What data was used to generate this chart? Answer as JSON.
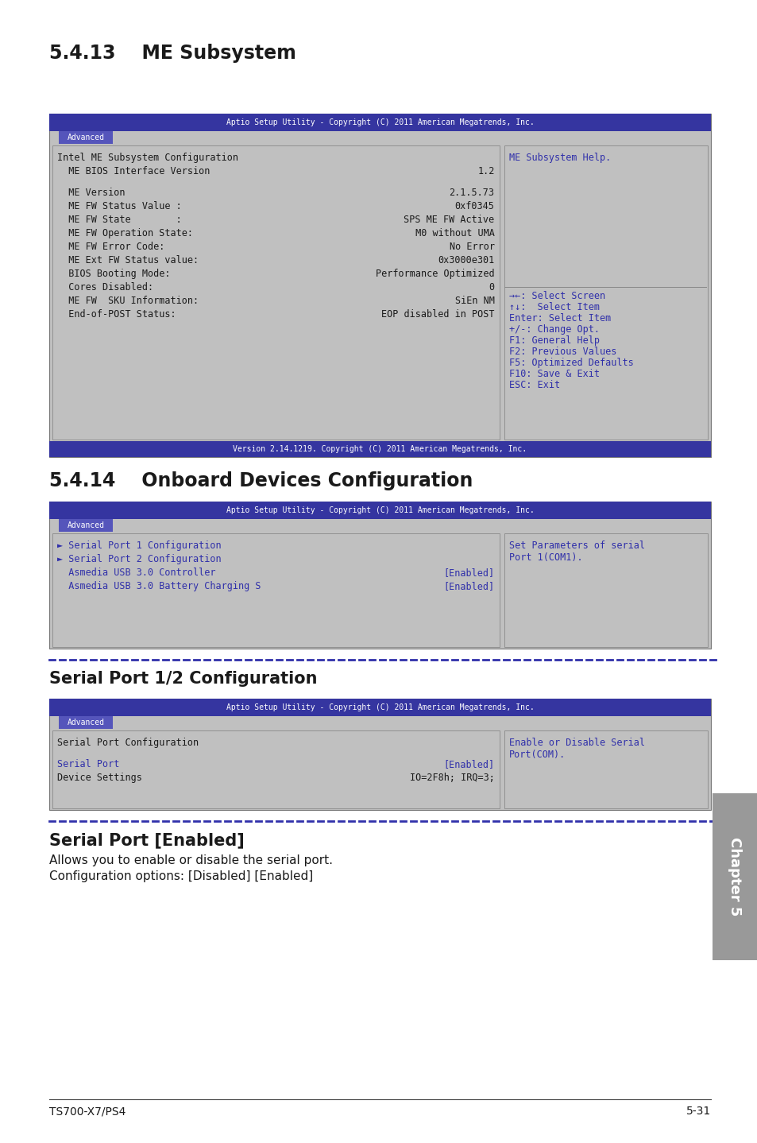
{
  "page_title_1": "5.4.13    ME Subsystem",
  "page_title_2": "5.4.14    Onboard Devices Configuration",
  "page_title_3": "Serial Port 1/2 Configuration",
  "page_title_4": "Serial Port [Enabled]",
  "page_body_4_line1": "Allows you to enable or disable the serial port.",
  "page_body_4_line2": "Configuration options: [Disabled] [Enabled]",
  "header_text": "Aptio Setup Utility - Copyright (C) 2011 American Megatrends, Inc.",
  "tab_text": "Advanced",
  "footer_text": "Version 2.14.1219. Copyright (C) 2011 American Megatrends, Inc.",
  "blue_dark": "#3535a0",
  "blue_mid": "#5555bb",
  "blue_tab": "#6060bb",
  "bg_gray": "#c0c0c0",
  "text_black": "#1a1a1a",
  "text_blue": "#3030aa",
  "text_white": "#ffffff",
  "me_left_lines": [
    {
      "label": "Intel ME Subsystem Configuration",
      "val": "",
      "bold": true,
      "indent": 0
    },
    {
      "label": "  ME BIOS Interface Version",
      "val": "1.2",
      "bold": true,
      "indent": 0
    },
    {
      "label": "",
      "val": "",
      "bold": false,
      "indent": 0
    },
    {
      "label": "  ME Version",
      "val": "2.1.5.73",
      "bold": true,
      "indent": 0
    },
    {
      "label": "  ME FW Status Value :",
      "val": "0xf0345",
      "bold": true,
      "indent": 0
    },
    {
      "label": "  ME FW State        :",
      "val": " SPS ME FW Active",
      "bold": true,
      "indent": 0
    },
    {
      "label": "  ME FW Operation State:",
      "val": " M0 without UMA",
      "bold": true,
      "indent": 0
    },
    {
      "label": "  ME FW Error Code:",
      "val": "No Error",
      "bold": true,
      "indent": 0
    },
    {
      "label": "  ME Ext FW Status value:",
      "val": "0x3000e301",
      "bold": true,
      "indent": 0
    },
    {
      "label": "  BIOS Booting Mode:",
      "val": "Performance Optimized",
      "bold": true,
      "indent": 0
    },
    {
      "label": "  Cores Disabled:",
      "val": "0",
      "bold": true,
      "indent": 0
    },
    {
      "label": "  ME FW  SKU Information:",
      "val": "SiEn NM",
      "bold": true,
      "indent": 0
    },
    {
      "label": "  End-of-POST Status:",
      "val": "EOP disabled in POST",
      "bold": true,
      "indent": 0
    }
  ],
  "me_right_top": "ME Subsystem Help.",
  "me_right_bottom": [
    "→←: Select Screen",
    "↑↓:  Select Item",
    "Enter: Select Item",
    "+/-: Change Opt.",
    "F1: General Help",
    "F2: Previous Values",
    "F5: Optimized Defaults",
    "F10: Save & Exit",
    "ESC: Exit"
  ],
  "onboard_left_lines": [
    {
      "label": "► Serial Port 1 Configuration",
      "val": "",
      "blue": true
    },
    {
      "label": "► Serial Port 2 Configuration",
      "val": "",
      "blue": true
    },
    {
      "label": "  Asmedia USB 3.0 Controller",
      "val": "[Enabled]",
      "blue": true
    },
    {
      "label": "  Asmedia USB 3.0 Battery Charging S",
      "val": "[Enabled]",
      "blue": true
    }
  ],
  "onboard_right": [
    "Set Parameters of serial",
    "Port 1(COM1)."
  ],
  "serial_left_lines": [
    {
      "label": "Serial Port Configuration",
      "val": "",
      "bold": true,
      "blue": false
    },
    {
      "label": "",
      "val": "",
      "bold": false,
      "blue": false
    },
    {
      "label": "Serial Port",
      "val": "[Enabled]",
      "bold": true,
      "blue": true
    },
    {
      "label": "Device Settings",
      "val": "IO=2F8h; IRQ=3;",
      "bold": true,
      "blue": false
    }
  ],
  "serial_right": [
    "Enable or Disable Serial",
    "Port(COM)."
  ],
  "footer_left": "TS700-X7/PS4",
  "footer_right": "5-31",
  "chapter_label": "Chapter 5"
}
